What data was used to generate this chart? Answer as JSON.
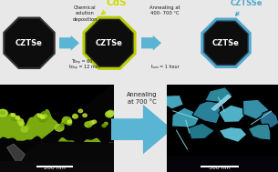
{
  "bg_color": "#e8e8e8",
  "crystal1_color": "#0d0d0d",
  "crystal1_border": "#1a1a1a",
  "crystal2_color": "#0d0d0d",
  "crystal2_border": "#b8cc00",
  "crystal3_color": "#0d0d0d",
  "crystal3_border": "#4fa8cc",
  "text_CZTSe": "#ffffff",
  "text_CdS": "#ccdd00",
  "text_CZTSSe": "#4fa8cc",
  "arrow_color": "#5ab4d4",
  "label1": "Chemical\nsolution\ndeposition",
  "label2": "Annealing at\n400- 700 °C",
  "label3": "Annealing\nat 700 °C",
  "param1": "Tᴅₑₚ = 60 °C\ntᴅₑₚ = 12 min",
  "param2": "tₐₙₙ = 1 hour",
  "scalebar1": "200 nm",
  "scalebar2": "500 nm"
}
